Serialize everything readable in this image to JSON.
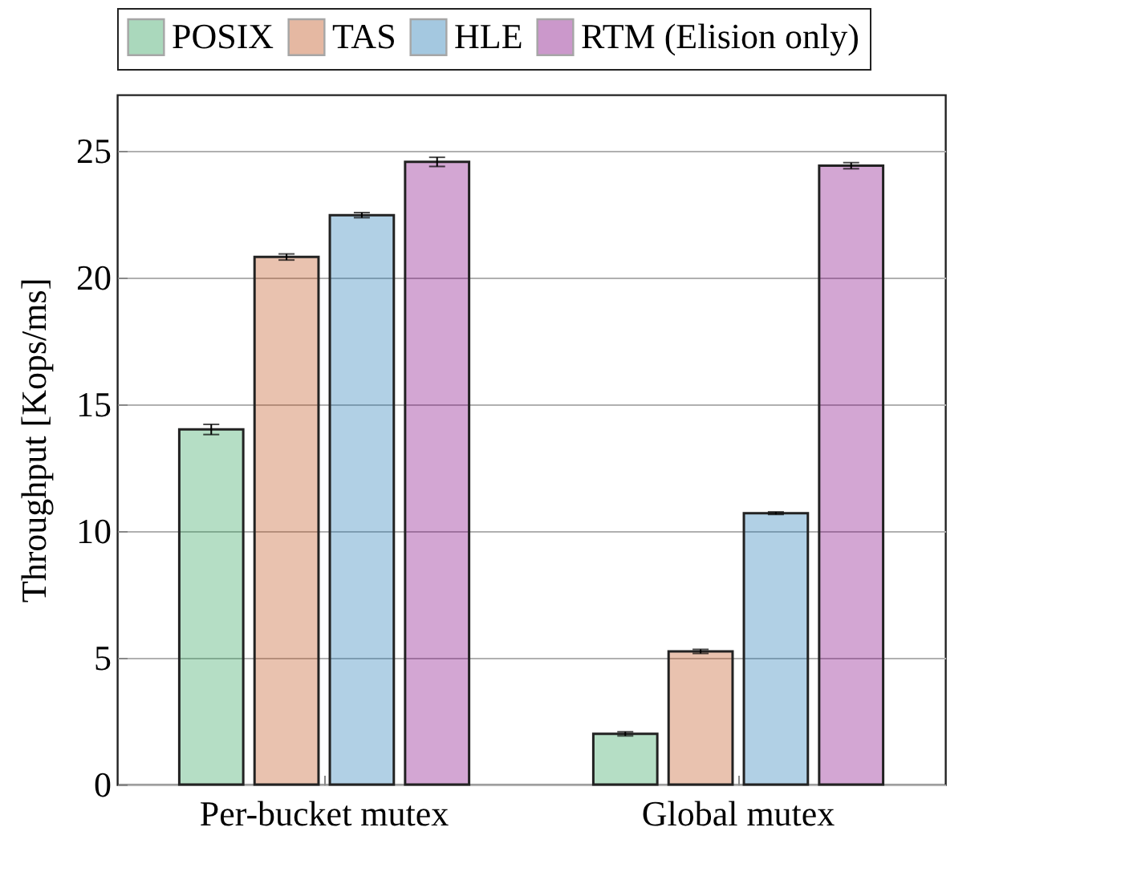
{
  "chart_data": {
    "type": "bar",
    "ylabel": "Throughput [Kops/ms]",
    "categories": [
      "Per-bucket mutex",
      "Global mutex"
    ],
    "series": [
      {
        "name": "POSIX",
        "color": "#2ca05a",
        "values": [
          14.0,
          2.0
        ],
        "errors": [
          0.2,
          0.08
        ]
      },
      {
        "name": "TAS",
        "color": "#c0501a",
        "values": [
          20.8,
          5.25
        ],
        "errors": [
          0.12,
          0.08
        ]
      },
      {
        "name": "HLE",
        "color": "#1f77b4",
        "values": [
          22.45,
          10.7
        ],
        "errors": [
          0.1,
          0.05
        ]
      },
      {
        "name": "RTM (Elision only)",
        "color": "#800080",
        "values": [
          24.55,
          24.4
        ],
        "errors": [
          0.18,
          0.12
        ]
      }
    ],
    "ylim": [
      0,
      27.2
    ],
    "yticks": [
      0,
      5,
      10,
      15,
      20,
      25
    ],
    "grid": "y",
    "legend": "top"
  }
}
